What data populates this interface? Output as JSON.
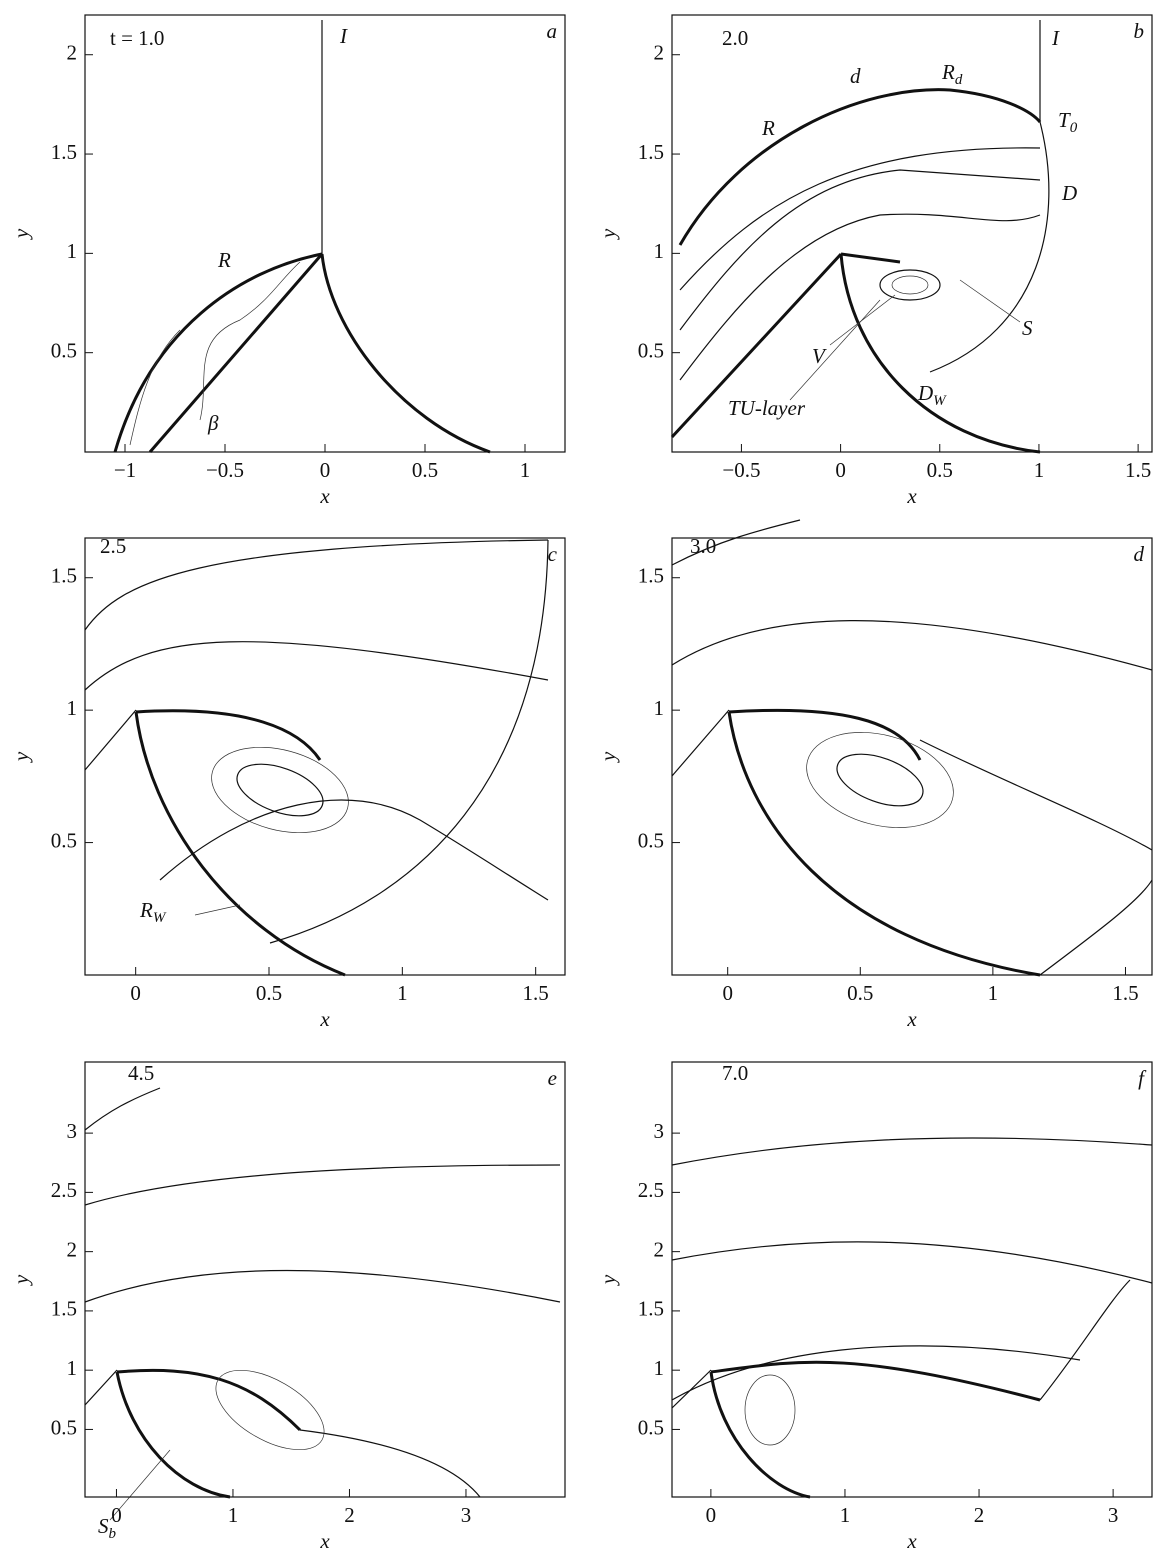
{
  "chart_data": [
    {
      "type": "contour",
      "label": "t = 1.0",
      "panel": "a",
      "xlabel": "x",
      "ylabel": "y",
      "xlim": [
        -1.2,
        1.2
      ],
      "ylim": [
        0,
        2.2
      ],
      "xticks": [
        {
          "value": -1,
          "label": "−1"
        },
        {
          "value": -0.5,
          "label": "−0.5"
        },
        0,
        0.5,
        1
      ],
      "yticks": [
        0.5,
        1,
        1.5,
        2
      ],
      "annotations": [
        {
          "text": "I"
        },
        {
          "text": "R"
        },
        {
          "text": "β"
        }
      ]
    },
    {
      "type": "contour",
      "label": "2.0",
      "panel": "b",
      "xlabel": "x",
      "ylabel": "y",
      "xlim": [
        -0.85,
        1.57
      ],
      "ylim": [
        0,
        2.2
      ],
      "xticks": [
        {
          "value": -0.5,
          "label": "−0.5"
        },
        0,
        0.5,
        1,
        1.5
      ],
      "yticks": [
        0.5,
        1,
        1.5,
        2
      ],
      "annotations": [
        {
          "text": "I"
        },
        {
          "text": "d"
        },
        {
          "text": "R",
          "sub": "d"
        },
        {
          "text": "R"
        },
        {
          "text": "T",
          "sub": "0"
        },
        {
          "text": "D"
        },
        {
          "text": "S"
        },
        {
          "text": "V"
        },
        {
          "text": "TU-layer"
        },
        {
          "text": "D",
          "sub": "W"
        }
      ]
    },
    {
      "type": "contour",
      "label": "2.5",
      "panel": "c",
      "xlabel": "x",
      "ylabel": "y",
      "xlim": [
        -0.19,
        1.61
      ],
      "ylim": [
        0,
        1.65
      ],
      "xticks": [
        0,
        0.5,
        1,
        1.5
      ],
      "yticks": [
        0.5,
        1,
        1.5
      ],
      "annotations": [
        {
          "text": "R",
          "sub": "W"
        }
      ]
    },
    {
      "type": "contour",
      "label": "3.0",
      "panel": "d",
      "xlabel": "x",
      "ylabel": "y",
      "xlim": [
        -0.21,
        1.6
      ],
      "ylim": [
        0,
        1.65
      ],
      "xticks": [
        0,
        0.5,
        1,
        1.5
      ],
      "yticks": [
        0.5,
        1,
        1.5
      ],
      "annotations": []
    },
    {
      "type": "contour",
      "label": "4.5",
      "panel": "e",
      "xlabel": "x",
      "ylabel": "y",
      "xlim": [
        -0.27,
        3.85
      ],
      "ylim": [
        -0.07,
        3.6
      ],
      "xticks": [
        0,
        1,
        2,
        3
      ],
      "yticks": [
        0.5,
        1,
        1.5,
        2,
        2.5,
        3
      ],
      "annotations": [
        {
          "text": "S",
          "sub": "b"
        }
      ]
    },
    {
      "type": "contour",
      "label": "7.0",
      "panel": "f",
      "xlabel": "x",
      "ylabel": "y",
      "xlim": [
        -0.29,
        3.29
      ],
      "ylim": [
        -0.07,
        3.6
      ],
      "xticks": [
        0,
        1,
        2,
        3
      ],
      "yticks": [
        0.5,
        1,
        1.5,
        2,
        2.5,
        3
      ],
      "annotations": []
    }
  ]
}
